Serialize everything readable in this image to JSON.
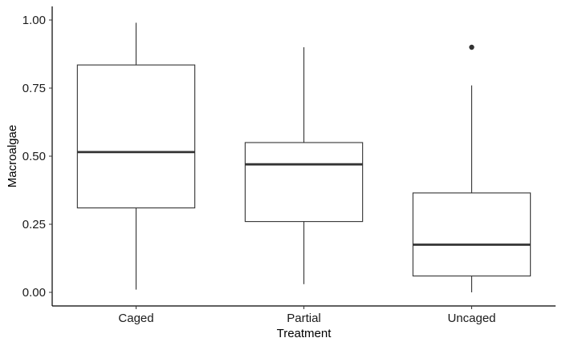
{
  "chart_data": {
    "type": "box",
    "xlabel": "Treatment",
    "ylabel": "Macroalgae",
    "categories": [
      "Caged",
      "Partial",
      "Uncaged"
    ],
    "ylim": [
      -0.05,
      1.05
    ],
    "yticks": [
      0.0,
      0.25,
      0.5,
      0.75,
      1.0
    ],
    "ytick_labels": [
      "0.00",
      "0.25",
      "0.50",
      "0.75",
      "1.00"
    ],
    "grid": false,
    "series": [
      {
        "category": "Caged",
        "min": 0.01,
        "q1": 0.31,
        "median": 0.515,
        "q3": 0.835,
        "max": 0.99,
        "outliers": []
      },
      {
        "category": "Partial",
        "min": 0.03,
        "q1": 0.26,
        "median": 0.47,
        "q3": 0.55,
        "max": 0.9,
        "outliers": []
      },
      {
        "category": "Uncaged",
        "min": 0.0,
        "q1": 0.06,
        "median": 0.175,
        "q3": 0.365,
        "max": 0.76,
        "outliers": [
          0.9
        ]
      }
    ]
  }
}
